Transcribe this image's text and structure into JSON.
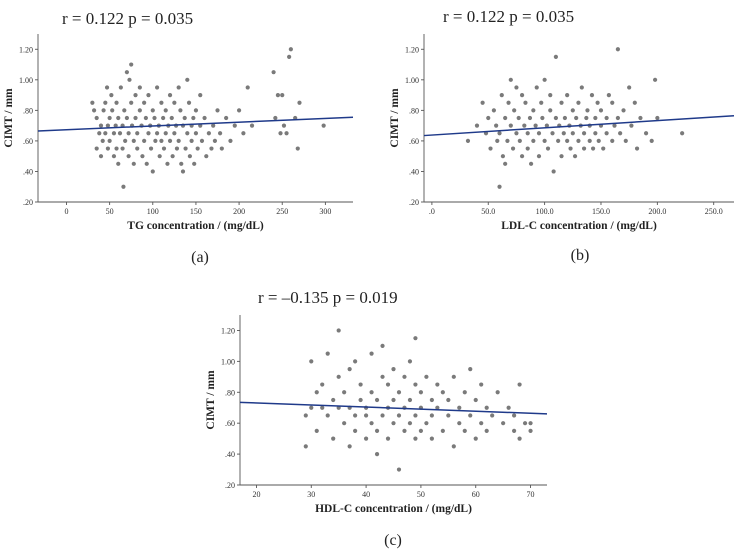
{
  "chart_data": [
    {
      "type": "scatter",
      "stat_label": "r = 0.122   p = 0.035",
      "xlabel": "TG concentration / (mg/dL)",
      "ylabel": "CIMT / mm",
      "panel_label": "(a)",
      "xlim": [
        -33,
        332
      ],
      "ylim": [
        0.2,
        1.3
      ],
      "xticks": [
        0,
        50,
        100,
        150,
        200,
        250,
        300
      ],
      "xtick_labels": [
        "0",
        "50",
        "100",
        "150",
        "200",
        "250",
        "300"
      ],
      "yticks": [
        0.2,
        0.4,
        0.6,
        0.8,
        1.0,
        1.2
      ],
      "ytick_labels": [
        ".20",
        ".40",
        ".60",
        ".80",
        "1.00",
        "1.20"
      ],
      "fit_line": [
        [
          -33,
          0.665
        ],
        [
          332,
          0.755
        ]
      ],
      "points": [
        [
          30,
          0.85
        ],
        [
          32,
          0.8
        ],
        [
          35,
          0.55
        ],
        [
          35,
          0.75
        ],
        [
          38,
          0.65
        ],
        [
          40,
          0.7
        ],
        [
          40,
          0.5
        ],
        [
          42,
          0.6
        ],
        [
          43,
          0.8
        ],
        [
          45,
          0.85
        ],
        [
          45,
          0.65
        ],
        [
          47,
          0.95
        ],
        [
          48,
          0.7
        ],
        [
          48,
          0.55
        ],
        [
          50,
          0.75
        ],
        [
          50,
          0.6
        ],
        [
          52,
          0.9
        ],
        [
          53,
          0.8
        ],
        [
          55,
          0.65
        ],
        [
          55,
          0.5
        ],
        [
          57,
          0.7
        ],
        [
          58,
          0.85
        ],
        [
          58,
          0.55
        ],
        [
          60,
          0.75
        ],
        [
          60,
          0.45
        ],
        [
          62,
          0.65
        ],
        [
          63,
          0.95
        ],
        [
          65,
          0.7
        ],
        [
          65,
          0.55
        ],
        [
          66,
          0.3
        ],
        [
          67,
          0.8
        ],
        [
          68,
          0.6
        ],
        [
          70,
          1.05
        ],
        [
          70,
          0.75
        ],
        [
          72,
          0.65
        ],
        [
          72,
          0.5
        ],
        [
          73,
          1.0
        ],
        [
          75,
          1.1
        ],
        [
          75,
          0.85
        ],
        [
          76,
          0.7
        ],
        [
          78,
          0.6
        ],
        [
          78,
          0.45
        ],
        [
          80,
          0.9
        ],
        [
          80,
          0.75
        ],
        [
          82,
          0.65
        ],
        [
          82,
          0.55
        ],
        [
          85,
          0.8
        ],
        [
          85,
          0.95
        ],
        [
          87,
          0.7
        ],
        [
          88,
          0.5
        ],
        [
          90,
          0.85
        ],
        [
          90,
          0.6
        ],
        [
          92,
          0.75
        ],
        [
          93,
          0.45
        ],
        [
          95,
          0.65
        ],
        [
          95,
          0.9
        ],
        [
          97,
          0.7
        ],
        [
          98,
          0.55
        ],
        [
          100,
          0.8
        ],
        [
          100,
          0.4
        ],
        [
          102,
          0.75
        ],
        [
          103,
          0.6
        ],
        [
          105,
          0.95
        ],
        [
          105,
          0.65
        ],
        [
          107,
          0.7
        ],
        [
          108,
          0.5
        ],
        [
          110,
          0.85
        ],
        [
          110,
          0.6
        ],
        [
          112,
          0.75
        ],
        [
          113,
          0.55
        ],
        [
          115,
          0.8
        ],
        [
          115,
          0.65
        ],
        [
          117,
          0.45
        ],
        [
          118,
          0.7
        ],
        [
          120,
          0.9
        ],
        [
          120,
          0.6
        ],
        [
          122,
          0.75
        ],
        [
          123,
          0.5
        ],
        [
          125,
          0.65
        ],
        [
          125,
          0.85
        ],
        [
          127,
          0.7
        ],
        [
          128,
          0.55
        ],
        [
          130,
          0.95
        ],
        [
          130,
          0.6
        ],
        [
          132,
          0.8
        ],
        [
          133,
          0.45
        ],
        [
          135,
          0.7
        ],
        [
          135,
          0.4
        ],
        [
          137,
          0.75
        ],
        [
          138,
          0.55
        ],
        [
          140,
          0.65
        ],
        [
          140,
          1.0
        ],
        [
          142,
          0.85
        ],
        [
          143,
          0.5
        ],
        [
          145,
          0.7
        ],
        [
          145,
          0.6
        ],
        [
          147,
          0.75
        ],
        [
          148,
          0.45
        ],
        [
          150,
          0.8
        ],
        [
          150,
          0.65
        ],
        [
          152,
          0.55
        ],
        [
          155,
          0.7
        ],
        [
          155,
          0.9
        ],
        [
          157,
          0.6
        ],
        [
          160,
          0.75
        ],
        [
          162,
          0.5
        ],
        [
          165,
          0.65
        ],
        [
          168,
          0.55
        ],
        [
          170,
          0.7
        ],
        [
          172,
          0.6
        ],
        [
          175,
          0.8
        ],
        [
          178,
          0.65
        ],
        [
          180,
          0.55
        ],
        [
          185,
          0.75
        ],
        [
          190,
          0.6
        ],
        [
          195,
          0.7
        ],
        [
          200,
          0.8
        ],
        [
          205,
          0.65
        ],
        [
          210,
          0.95
        ],
        [
          215,
          0.7
        ],
        [
          240,
          1.05
        ],
        [
          242,
          0.75
        ],
        [
          245,
          0.9
        ],
        [
          248,
          0.65
        ],
        [
          250,
          0.9
        ],
        [
          252,
          0.7
        ],
        [
          255,
          0.65
        ],
        [
          258,
          1.15
        ],
        [
          260,
          1.2
        ],
        [
          265,
          0.75
        ],
        [
          268,
          0.55
        ],
        [
          270,
          0.85
        ],
        [
          298,
          0.7
        ]
      ]
    },
    {
      "type": "scatter",
      "stat_label": "r = 0.122   p = 0.035",
      "xlabel": "LDL-C concentration / (mg/dL)",
      "ylabel": "CIMT / mm",
      "panel_label": "(b)",
      "xlim": [
        -7,
        268
      ],
      "ylim": [
        0.2,
        1.3
      ],
      "xticks": [
        0,
        50,
        100,
        150,
        200,
        250
      ],
      "xtick_labels": [
        ".0",
        "50.0",
        "100.0",
        "150.0",
        "200.0",
        "250.0"
      ],
      "yticks": [
        0.2,
        0.4,
        0.6,
        0.8,
        1.0,
        1.2
      ],
      "ytick_labels": [
        ".20",
        ".40",
        ".60",
        ".80",
        "1.00",
        "1.20"
      ],
      "fit_line": [
        [
          -7,
          0.635
        ],
        [
          268,
          0.765
        ]
      ],
      "points": [
        [
          32,
          0.6
        ],
        [
          40,
          0.7
        ],
        [
          45,
          0.85
        ],
        [
          48,
          0.65
        ],
        [
          50,
          0.75
        ],
        [
          52,
          0.55
        ],
        [
          55,
          0.8
        ],
        [
          57,
          0.7
        ],
        [
          58,
          0.6
        ],
        [
          60,
          0.65
        ],
        [
          60,
          0.3
        ],
        [
          62,
          0.9
        ],
        [
          63,
          0.5
        ],
        [
          65,
          0.75
        ],
        [
          65,
          0.45
        ],
        [
          67,
          0.6
        ],
        [
          68,
          0.85
        ],
        [
          70,
          1.0
        ],
        [
          70,
          0.7
        ],
        [
          72,
          0.55
        ],
        [
          73,
          0.8
        ],
        [
          75,
          0.65
        ],
        [
          75,
          0.95
        ],
        [
          77,
          0.75
        ],
        [
          78,
          0.6
        ],
        [
          80,
          0.9
        ],
        [
          80,
          0.5
        ],
        [
          82,
          0.7
        ],
        [
          83,
          0.85
        ],
        [
          85,
          0.65
        ],
        [
          85,
          0.55
        ],
        [
          87,
          0.75
        ],
        [
          88,
          0.45
        ],
        [
          90,
          0.8
        ],
        [
          90,
          0.6
        ],
        [
          92,
          0.7
        ],
        [
          93,
          0.95
        ],
        [
          95,
          0.65
        ],
        [
          95,
          0.5
        ],
        [
          97,
          0.85
        ],
        [
          98,
          0.75
        ],
        [
          100,
          0.6
        ],
        [
          100,
          1.0
        ],
        [
          102,
          0.7
        ],
        [
          103,
          0.55
        ],
        [
          105,
          0.8
        ],
        [
          105,
          0.9
        ],
        [
          107,
          0.65
        ],
        [
          108,
          0.4
        ],
        [
          110,
          0.75
        ],
        [
          110,
          1.15
        ],
        [
          112,
          0.6
        ],
        [
          113,
          0.7
        ],
        [
          115,
          0.85
        ],
        [
          115,
          0.5
        ],
        [
          117,
          0.65
        ],
        [
          118,
          0.75
        ],
        [
          120,
          0.6
        ],
        [
          120,
          0.9
        ],
        [
          122,
          0.7
        ],
        [
          123,
          0.55
        ],
        [
          125,
          0.8
        ],
        [
          125,
          0.65
        ],
        [
          127,
          0.5
        ],
        [
          128,
          0.75
        ],
        [
          130,
          0.85
        ],
        [
          130,
          0.6
        ],
        [
          132,
          0.7
        ],
        [
          133,
          0.95
        ],
        [
          135,
          0.65
        ],
        [
          135,
          0.55
        ],
        [
          137,
          0.75
        ],
        [
          138,
          0.8
        ],
        [
          140,
          0.6
        ],
        [
          140,
          0.7
        ],
        [
          142,
          0.9
        ],
        [
          143,
          0.55
        ],
        [
          145,
          0.75
        ],
        [
          145,
          0.65
        ],
        [
          147,
          0.85
        ],
        [
          148,
          0.6
        ],
        [
          150,
          0.7
        ],
        [
          150,
          0.8
        ],
        [
          152,
          0.55
        ],
        [
          155,
          0.75
        ],
        [
          155,
          0.65
        ],
        [
          157,
          0.9
        ],
        [
          160,
          0.6
        ],
        [
          160,
          0.85
        ],
        [
          162,
          0.7
        ],
        [
          165,
          1.2
        ],
        [
          165,
          0.75
        ],
        [
          167,
          0.65
        ],
        [
          170,
          0.8
        ],
        [
          172,
          0.6
        ],
        [
          175,
          0.95
        ],
        [
          177,
          0.7
        ],
        [
          180,
          0.85
        ],
        [
          182,
          0.55
        ],
        [
          185,
          0.75
        ],
        [
          190,
          0.65
        ],
        [
          195,
          0.6
        ],
        [
          198,
          1.0
        ],
        [
          200,
          0.75
        ],
        [
          222,
          0.65
        ]
      ]
    },
    {
      "type": "scatter",
      "stat_label": "r = –0.135   p = 0.019",
      "xlabel": "HDL-C concentration / (mg/dL)",
      "ylabel": "CIMT / mm",
      "panel_label": "(c)",
      "xlim": [
        17,
        73
      ],
      "ylim": [
        0.2,
        1.3
      ],
      "xticks": [
        20,
        30,
        40,
        50,
        60,
        70
      ],
      "xtick_labels": [
        "20",
        "30",
        "40",
        "50",
        "60",
        "70"
      ],
      "yticks": [
        0.2,
        0.4,
        0.6,
        0.8,
        1.0,
        1.2
      ],
      "ytick_labels": [
        ".20",
        ".40",
        ".60",
        ".80",
        "1.00",
        "1.20"
      ],
      "fit_line": [
        [
          17,
          0.735
        ],
        [
          73,
          0.66
        ]
      ],
      "points": [
        [
          29,
          0.45
        ],
        [
          29,
          0.65
        ],
        [
          30,
          0.7
        ],
        [
          30,
          1.0
        ],
        [
          31,
          0.8
        ],
        [
          31,
          0.55
        ],
        [
          32,
          0.7
        ],
        [
          32,
          0.85
        ],
        [
          33,
          1.05
        ],
        [
          33,
          0.65
        ],
        [
          34,
          0.75
        ],
        [
          34,
          0.5
        ],
        [
          35,
          0.9
        ],
        [
          35,
          0.7
        ],
        [
          35,
          1.2
        ],
        [
          36,
          0.6
        ],
        [
          36,
          0.8
        ],
        [
          37,
          0.45
        ],
        [
          37,
          0.7
        ],
        [
          37,
          0.95
        ],
        [
          38,
          0.65
        ],
        [
          38,
          0.55
        ],
        [
          38,
          1.0
        ],
        [
          39,
          0.75
        ],
        [
          39,
          0.85
        ],
        [
          40,
          0.5
        ],
        [
          40,
          0.65
        ],
        [
          40,
          0.7
        ],
        [
          41,
          1.05
        ],
        [
          41,
          0.6
        ],
        [
          41,
          0.8
        ],
        [
          42,
          0.55
        ],
        [
          42,
          0.75
        ],
        [
          42,
          0.4
        ],
        [
          43,
          0.9
        ],
        [
          43,
          0.65
        ],
        [
          43,
          1.1
        ],
        [
          44,
          0.7
        ],
        [
          44,
          0.5
        ],
        [
          44,
          0.85
        ],
        [
          45,
          0.6
        ],
        [
          45,
          0.75
        ],
        [
          45,
          0.95
        ],
        [
          46,
          0.65
        ],
        [
          46,
          0.3
        ],
        [
          46,
          0.8
        ],
        [
          47,
          0.55
        ],
        [
          47,
          0.7
        ],
        [
          47,
          0.9
        ],
        [
          48,
          0.6
        ],
        [
          48,
          0.75
        ],
        [
          48,
          1.0
        ],
        [
          49,
          0.65
        ],
        [
          49,
          0.5
        ],
        [
          49,
          0.85
        ],
        [
          49,
          1.15
        ],
        [
          50,
          0.7
        ],
        [
          50,
          0.55
        ],
        [
          50,
          0.8
        ],
        [
          51,
          0.6
        ],
        [
          51,
          0.9
        ],
        [
          52,
          0.75
        ],
        [
          52,
          0.65
        ],
        [
          52,
          0.5
        ],
        [
          53,
          0.85
        ],
        [
          53,
          0.7
        ],
        [
          54,
          0.55
        ],
        [
          54,
          0.8
        ],
        [
          55,
          0.65
        ],
        [
          55,
          0.75
        ],
        [
          56,
          0.45
        ],
        [
          56,
          0.9
        ],
        [
          57,
          0.7
        ],
        [
          57,
          0.6
        ],
        [
          58,
          0.8
        ],
        [
          58,
          0.55
        ],
        [
          59,
          0.65
        ],
        [
          59,
          0.95
        ],
        [
          60,
          0.75
        ],
        [
          60,
          0.5
        ],
        [
          61,
          0.6
        ],
        [
          61,
          0.85
        ],
        [
          62,
          0.7
        ],
        [
          62,
          0.55
        ],
        [
          63,
          0.65
        ],
        [
          64,
          0.8
        ],
        [
          65,
          0.6
        ],
        [
          66,
          0.7
        ],
        [
          67,
          0.55
        ],
        [
          67,
          0.65
        ],
        [
          68,
          0.5
        ],
        [
          68,
          0.85
        ],
        [
          69,
          0.6
        ],
        [
          70,
          0.55
        ],
        [
          70,
          0.6
        ]
      ]
    }
  ]
}
